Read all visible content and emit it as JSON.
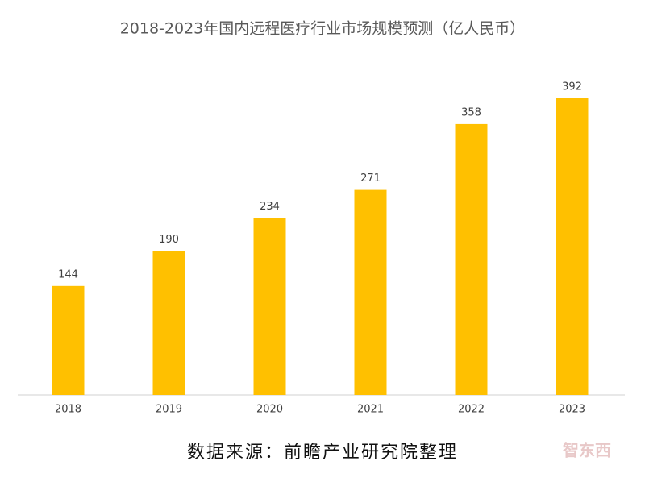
{
  "chart_data": {
    "type": "bar",
    "title": "2018-2023年国内远程医疗行业市场规模预测（亿人民币）",
    "categories": [
      "2018",
      "2019",
      "2020",
      "2021",
      "2022",
      "2023"
    ],
    "values": [
      144,
      190,
      234,
      271,
      358,
      392
    ],
    "color": "#ffc000",
    "source": "数据来源：前瞻产业研究院整理",
    "watermark": "智东西"
  }
}
